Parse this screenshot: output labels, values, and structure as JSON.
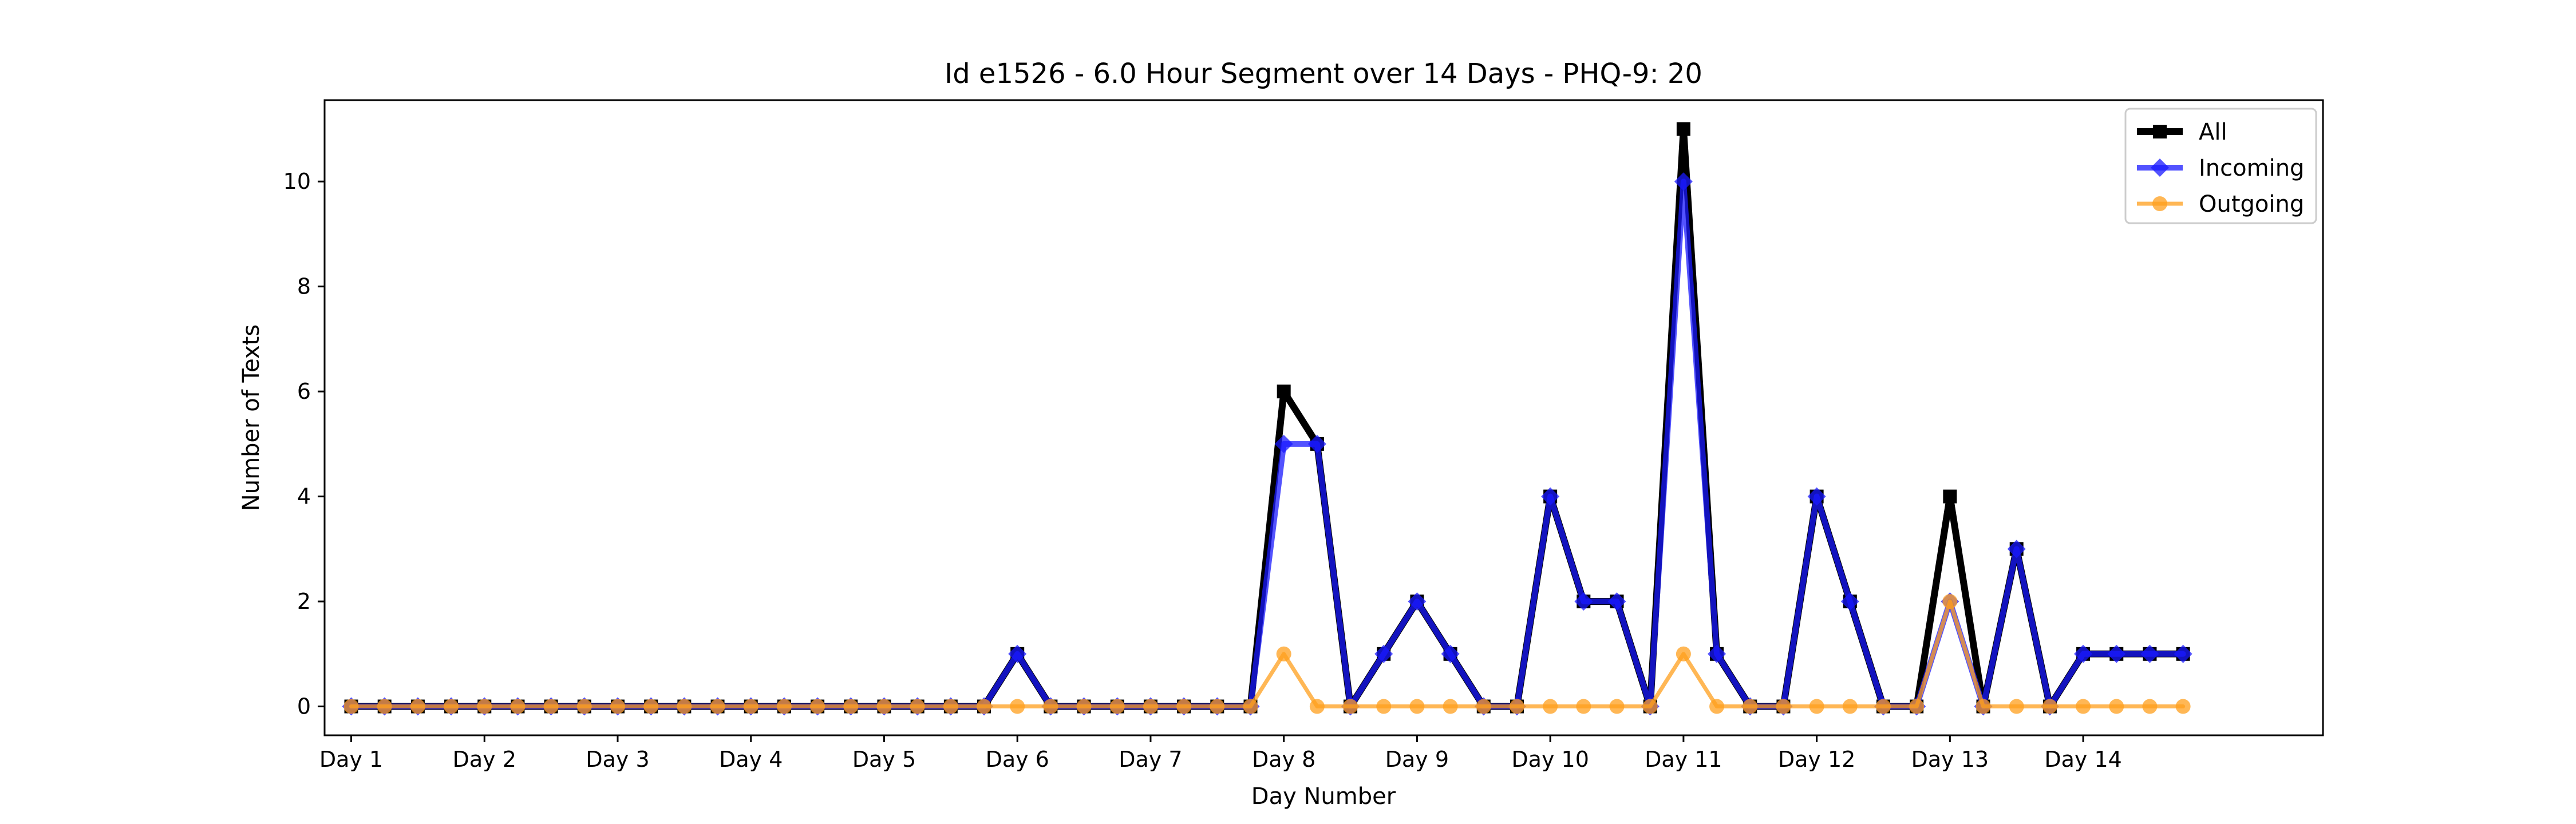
{
  "chart_data": {
    "type": "line",
    "title": "Id e1526 - 6.0 Hour Segment over 14 Days - PHQ-9: 20",
    "xlabel": "Day Number",
    "ylabel": "Number of Texts",
    "xlim": [
      -0.2,
      14.8
    ],
    "ylim": [
      -0.55,
      11.55
    ],
    "x_ticks": [
      {
        "value": 0,
        "label": "Day 1"
      },
      {
        "value": 1,
        "label": "Day 2"
      },
      {
        "value": 2,
        "label": "Day 3"
      },
      {
        "value": 3,
        "label": "Day 4"
      },
      {
        "value": 4,
        "label": "Day 5"
      },
      {
        "value": 5,
        "label": "Day 6"
      },
      {
        "value": 6,
        "label": "Day 7"
      },
      {
        "value": 7,
        "label": "Day 8"
      },
      {
        "value": 8,
        "label": "Day 9"
      },
      {
        "value": 9,
        "label": "Day 10"
      },
      {
        "value": 10,
        "label": "Day 11"
      },
      {
        "value": 11,
        "label": "Day 12"
      },
      {
        "value": 12,
        "label": "Day 13"
      },
      {
        "value": 13,
        "label": "Day 14"
      }
    ],
    "y_ticks": [
      0,
      2,
      4,
      6,
      8,
      10
    ],
    "grid": false,
    "legend_position": "top-right",
    "x": [
      0,
      0.25,
      0.5,
      0.75,
      1,
      1.25,
      1.5,
      1.75,
      2,
      2.25,
      2.5,
      2.75,
      3,
      3.25,
      3.5,
      3.75,
      4,
      4.25,
      4.5,
      4.75,
      5,
      5.25,
      5.5,
      5.75,
      6,
      6.25,
      6.5,
      6.75,
      7,
      7.25,
      7.5,
      7.75,
      8,
      8.25,
      8.5,
      8.75,
      9,
      9.25,
      9.5,
      9.75,
      10,
      10.25,
      10.5,
      10.75,
      11,
      11.25,
      11.5,
      11.75,
      12,
      12.25,
      12.5,
      12.75,
      13,
      13.25,
      13.5,
      13.75
    ],
    "series": [
      {
        "name": "All",
        "color": "#000000",
        "marker": "square",
        "values": [
          0,
          0,
          0,
          0,
          0,
          0,
          0,
          0,
          0,
          0,
          0,
          0,
          0,
          0,
          0,
          0,
          0,
          0,
          0,
          0,
          1,
          0,
          0,
          0,
          0,
          0,
          0,
          0,
          6,
          5,
          0,
          1,
          2,
          1,
          0,
          0,
          4,
          2,
          2,
          0,
          11,
          1,
          0,
          0,
          4,
          2,
          0,
          0,
          4,
          0,
          3,
          0,
          1,
          1,
          1,
          1
        ]
      },
      {
        "name": "Incoming",
        "color": "#1a1aff",
        "marker": "diamond",
        "values": [
          0,
          0,
          0,
          0,
          0,
          0,
          0,
          0,
          0,
          0,
          0,
          0,
          0,
          0,
          0,
          0,
          0,
          0,
          0,
          0,
          1,
          0,
          0,
          0,
          0,
          0,
          0,
          0,
          5,
          5,
          0,
          1,
          2,
          1,
          0,
          0,
          4,
          2,
          2,
          0,
          10,
          1,
          0,
          0,
          4,
          2,
          0,
          0,
          2,
          0,
          3,
          0,
          1,
          1,
          1,
          1
        ]
      },
      {
        "name": "Outgoing",
        "color": "#ff9f1c",
        "marker": "circle",
        "values": [
          0,
          0,
          0,
          0,
          0,
          0,
          0,
          0,
          0,
          0,
          0,
          0,
          0,
          0,
          0,
          0,
          0,
          0,
          0,
          0,
          0,
          0,
          0,
          0,
          0,
          0,
          0,
          0,
          1,
          0,
          0,
          0,
          0,
          0,
          0,
          0,
          0,
          0,
          0,
          0,
          1,
          0,
          0,
          0,
          0,
          0,
          0,
          0,
          2,
          0,
          0,
          0,
          0,
          0,
          0,
          0
        ]
      }
    ]
  }
}
